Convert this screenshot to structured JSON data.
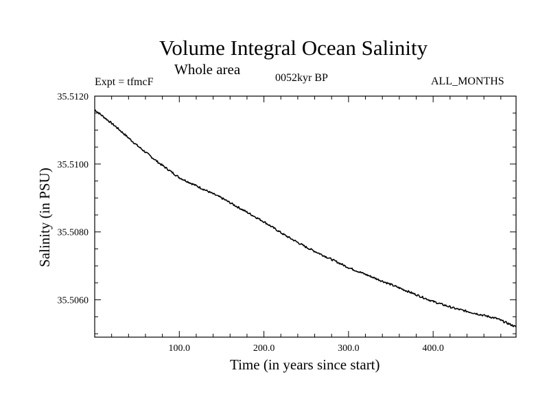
{
  "header": {
    "title": "Volume Integral Ocean Salinity",
    "subtitle": "Whole area",
    "experiment": "Expt = tfmcF",
    "period": "0052kyr BP",
    "months": "ALL_MONTHS"
  },
  "chart_data": {
    "type": "line",
    "xlabel": "Time (in years since start)",
    "ylabel": "Salinity (in PSU)",
    "xlim": [
      0,
      498
    ],
    "ylim": [
      35.5049,
      35.512
    ],
    "x_ticks": [
      100,
      200,
      300,
      400
    ],
    "x_tick_labels": [
      "100.0",
      "200.0",
      "300.0",
      "400.0"
    ],
    "y_ticks": [
      35.506,
      35.508,
      35.51,
      35.512
    ],
    "y_tick_labels": [
      "35.5060",
      "35.5080",
      "35.5100",
      "35.5120"
    ],
    "grid": false,
    "series": [
      {
        "x": [
          0,
          25,
          50,
          75,
          100,
          125,
          150,
          175,
          200,
          225,
          250,
          275,
          300,
          325,
          350,
          375,
          400,
          425,
          450,
          475,
          498
        ],
        "y": [
          35.5116,
          35.5111,
          35.51055,
          35.51005,
          35.5096,
          35.5093,
          35.509,
          35.50865,
          35.5083,
          35.5079,
          35.50755,
          35.50725,
          35.50695,
          35.5067,
          35.50645,
          35.5062,
          35.50595,
          35.50575,
          35.5056,
          35.50545,
          35.5052
        ]
      }
    ]
  }
}
